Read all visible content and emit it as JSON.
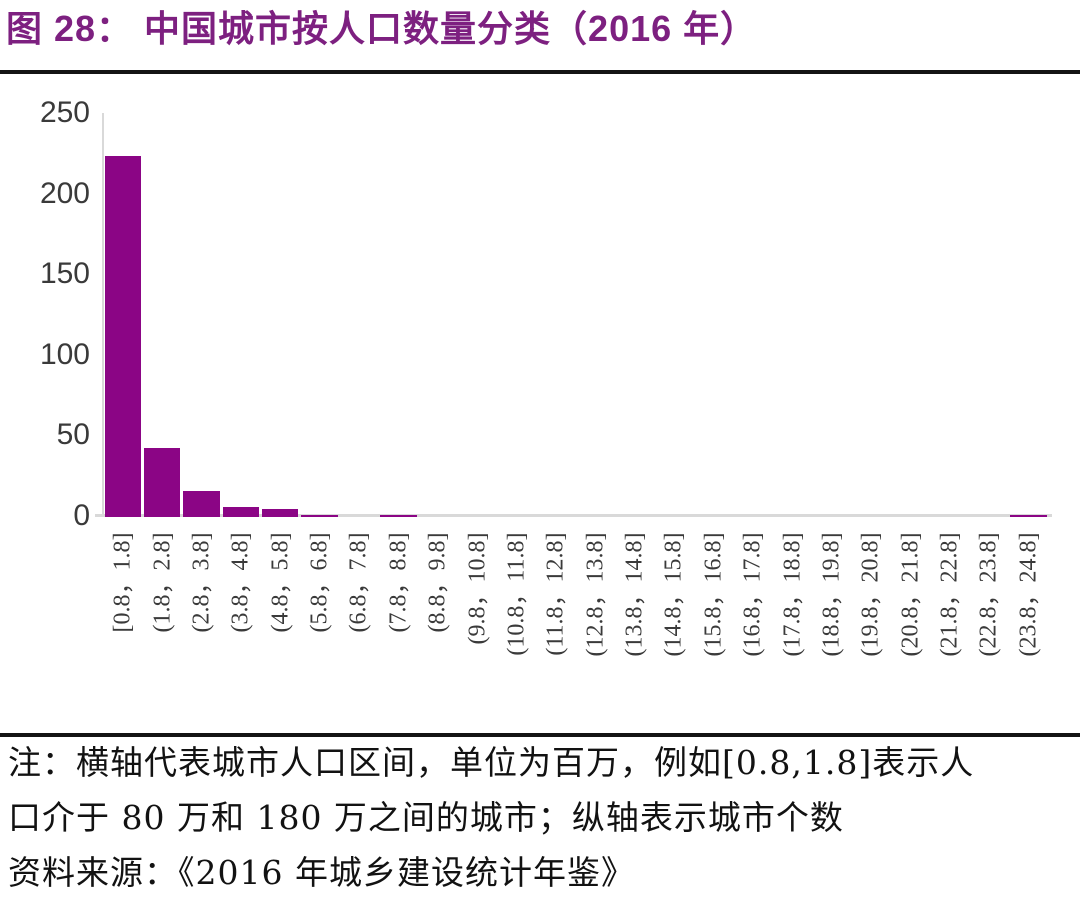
{
  "title": "图 28：  中国城市按人口数量分类（2016 年）",
  "colors": {
    "title_text": "#7D2080",
    "bar_fill": "#8B0585",
    "axis_line": "#D9D9D9",
    "tick_text": "#3A3A3A",
    "rule_line": "#141414"
  },
  "chart_data": {
    "type": "bar",
    "title": "中国城市按人口数量分类（2016 年）",
    "categories": [
      "[0.8，1.8]",
      "(1.8，2.8]",
      "(2.8，3.8]",
      "(3.8，4.8]",
      "(4.8，5.8]",
      "(5.8，6.8]",
      "(6.8，7.8]",
      "(7.8，8.8]",
      "(8.8，9.8]",
      "(9.8，10.8]",
      "(10.8，11.8]",
      "(11.8，12.8]",
      "(12.8，13.8]",
      "(13.8，14.8]",
      "(14.8，15.8]",
      "(15.8，16.8]",
      "(16.8，17.8]",
      "(17.8，18.8]",
      "(18.8，19.8]",
      "(19.8，20.8]",
      "(20.8，21.8]",
      "(21.8，22.8]",
      "(22.8，23.8]",
      "(23.8，24.8]"
    ],
    "values": [
      224,
      43,
      16,
      6,
      5,
      1,
      0,
      1,
      0,
      0,
      0,
      0,
      0,
      0,
      0,
      0,
      0,
      0,
      0,
      0,
      0,
      0,
      0,
      1
    ],
    "xlabel": "",
    "ylabel": "",
    "ylim": [
      0,
      250
    ],
    "yticks": [
      0,
      50,
      100,
      150,
      200,
      250
    ],
    "grid": false,
    "legend_position": "none",
    "bar_color": "#8B0585"
  },
  "notes": {
    "line1": "注：横轴代表城市人口区间，单位为百万，例如[0.8,1.8]表示人",
    "line2": "口介于 80 万和 180 万之间的城市；纵轴表示城市个数",
    "line3": "资料来源：《2016 年城乡建设统计年鉴》"
  }
}
